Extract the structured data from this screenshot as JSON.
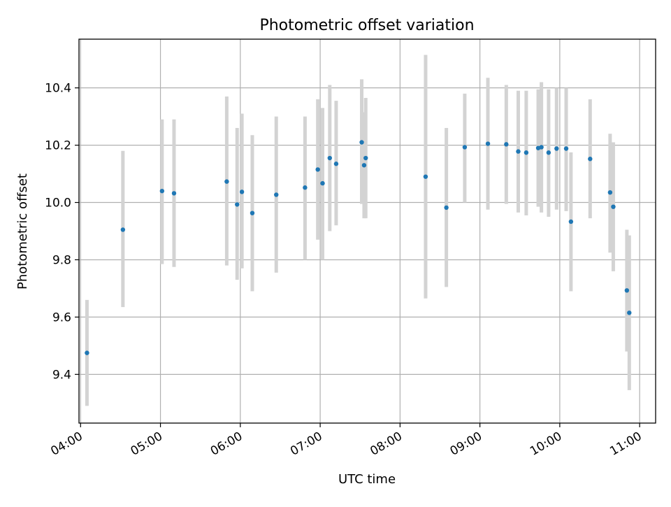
{
  "chart_data": {
    "type": "scatter",
    "title": "Photometric offset variation",
    "xlabel": "UTC time",
    "ylabel": "Photometric offset",
    "x_unit": "hours UTC",
    "xlim": [
      3.98,
      11.2
    ],
    "ylim": [
      9.23,
      10.57
    ],
    "x_ticks": [
      4,
      5,
      6,
      7,
      8,
      9,
      10,
      11
    ],
    "x_tick_labels": [
      "04:00",
      "05:00",
      "06:00",
      "07:00",
      "08:00",
      "09:00",
      "10:00",
      "11:00"
    ],
    "y_ticks": [
      9.4,
      9.6,
      9.8,
      10.0,
      10.2,
      10.4
    ],
    "y_tick_labels": [
      "9.4",
      "9.6",
      "9.8",
      "10.0",
      "10.2",
      "10.4"
    ],
    "grid": true,
    "point_color": "#1f77b4",
    "errorbar_color": "#d3d3d3",
    "points": [
      {
        "x": 4.08,
        "y": 9.475,
        "lo": 9.29,
        "hi": 9.66
      },
      {
        "x": 4.53,
        "y": 9.905,
        "lo": 9.635,
        "hi": 10.18
      },
      {
        "x": 5.02,
        "y": 10.04,
        "lo": 9.785,
        "hi": 10.29
      },
      {
        "x": 5.17,
        "y": 10.032,
        "lo": 9.775,
        "hi": 10.29
      },
      {
        "x": 5.83,
        "y": 10.073,
        "lo": 9.78,
        "hi": 10.37
      },
      {
        "x": 5.96,
        "y": 9.993,
        "lo": 9.73,
        "hi": 10.26
      },
      {
        "x": 6.02,
        "y": 10.037,
        "lo": 9.77,
        "hi": 10.31
      },
      {
        "x": 6.15,
        "y": 9.963,
        "lo": 9.69,
        "hi": 10.235
      },
      {
        "x": 6.45,
        "y": 10.027,
        "lo": 9.755,
        "hi": 10.3
      },
      {
        "x": 6.81,
        "y": 10.052,
        "lo": 9.8,
        "hi": 10.3
      },
      {
        "x": 6.97,
        "y": 10.115,
        "lo": 9.87,
        "hi": 10.36
      },
      {
        "x": 7.03,
        "y": 10.067,
        "lo": 9.8,
        "hi": 10.33
      },
      {
        "x": 7.12,
        "y": 10.155,
        "lo": 9.9,
        "hi": 10.41
      },
      {
        "x": 7.2,
        "y": 10.135,
        "lo": 9.92,
        "hi": 10.355
      },
      {
        "x": 7.52,
        "y": 10.21,
        "lo": 9.995,
        "hi": 10.43
      },
      {
        "x": 7.55,
        "y": 10.13,
        "lo": 9.945,
        "hi": 10.315
      },
      {
        "x": 7.57,
        "y": 10.155,
        "lo": 9.945,
        "hi": 10.365
      },
      {
        "x": 8.32,
        "y": 10.09,
        "lo": 9.665,
        "hi": 10.515
      },
      {
        "x": 8.58,
        "y": 9.982,
        "lo": 9.705,
        "hi": 10.26
      },
      {
        "x": 8.81,
        "y": 10.193,
        "lo": 10.0,
        "hi": 10.38
      },
      {
        "x": 9.1,
        "y": 10.205,
        "lo": 9.975,
        "hi": 10.435
      },
      {
        "x": 9.33,
        "y": 10.203,
        "lo": 9.995,
        "hi": 10.41
      },
      {
        "x": 9.48,
        "y": 10.178,
        "lo": 9.965,
        "hi": 10.39
      },
      {
        "x": 9.58,
        "y": 10.174,
        "lo": 9.955,
        "hi": 10.39
      },
      {
        "x": 9.73,
        "y": 10.19,
        "lo": 9.985,
        "hi": 10.395
      },
      {
        "x": 9.77,
        "y": 10.193,
        "lo": 9.965,
        "hi": 10.42
      },
      {
        "x": 9.86,
        "y": 10.174,
        "lo": 9.95,
        "hi": 10.395
      },
      {
        "x": 9.96,
        "y": 10.188,
        "lo": 9.975,
        "hi": 10.4
      },
      {
        "x": 10.08,
        "y": 10.188,
        "lo": 9.97,
        "hi": 10.4
      },
      {
        "x": 10.14,
        "y": 9.933,
        "lo": 9.69,
        "hi": 10.175
      },
      {
        "x": 10.38,
        "y": 10.152,
        "lo": 9.945,
        "hi": 10.36
      },
      {
        "x": 10.63,
        "y": 10.035,
        "lo": 9.825,
        "hi": 10.24
      },
      {
        "x": 10.67,
        "y": 9.985,
        "lo": 9.76,
        "hi": 10.21
      },
      {
        "x": 10.84,
        "y": 9.693,
        "lo": 9.48,
        "hi": 9.905
      },
      {
        "x": 10.87,
        "y": 9.615,
        "lo": 9.345,
        "hi": 9.885
      }
    ]
  }
}
